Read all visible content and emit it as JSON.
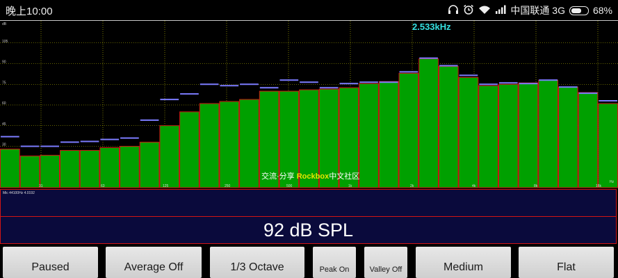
{
  "status_bar": {
    "time": "晚上10:00",
    "carrier": "中国联通 3G",
    "battery": "68%",
    "battery_level": 0.68,
    "icons": [
      "headphones-icon",
      "alarm-icon",
      "wifi-icon",
      "signal-icon",
      "battery-icon"
    ]
  },
  "spectrum": {
    "peak_frequency": "2.533kHz",
    "db_scale_label": "dB",
    "db_ticks": [
      "105",
      "90",
      "75",
      "60",
      "45",
      "30"
    ],
    "freq_ticks": [
      "31",
      "63",
      "125",
      "250",
      "500",
      "1k",
      "2k",
      "4k",
      "8k",
      "16k"
    ],
    "unit_label": "Hz",
    "watermark_prefix": "交流·分享 ",
    "watermark_brand": "Rockbox",
    "watermark_suffix": "中文社区",
    "bar_color": "#00a000",
    "bar_edge_color": "#d21414",
    "peak_color": "#7c7cff",
    "grid_color": "#c8c800"
  },
  "chart_data": {
    "type": "bar",
    "ylim": [
      0,
      120
    ],
    "levels": [
      28,
      23,
      23.5,
      27,
      27,
      29,
      30,
      33,
      45,
      55,
      61,
      62.5,
      64,
      70,
      70,
      71,
      71.5,
      72.5,
      75.5,
      77,
      83,
      93.5,
      88,
      80,
      74,
      75,
      76,
      78,
      73,
      69,
      61
    ],
    "peaks": [
      37,
      30,
      30,
      33,
      33.5,
      35,
      36,
      49,
      64,
      68,
      75,
      74,
      75,
      72.5,
      78,
      76.5,
      72.5,
      75.5,
      76.5,
      76.5,
      84,
      94,
      88.5,
      81.5,
      75,
      76,
      75.5,
      78,
      73,
      68.5,
      63
    ]
  },
  "panel": {
    "device_info": "Mic 44100Hz 4.0192",
    "spl": "92 dB SPL"
  },
  "buttons": [
    {
      "id": "paused",
      "label": "Paused"
    },
    {
      "id": "average",
      "label": "Average Off"
    },
    {
      "id": "octave",
      "label": "1/3 Octave"
    },
    {
      "id": "peak",
      "label": "Peak On"
    },
    {
      "id": "valley",
      "label": "Valley Off"
    },
    {
      "id": "speed",
      "label": "Medium"
    },
    {
      "id": "weighting",
      "label": "Flat"
    }
  ]
}
